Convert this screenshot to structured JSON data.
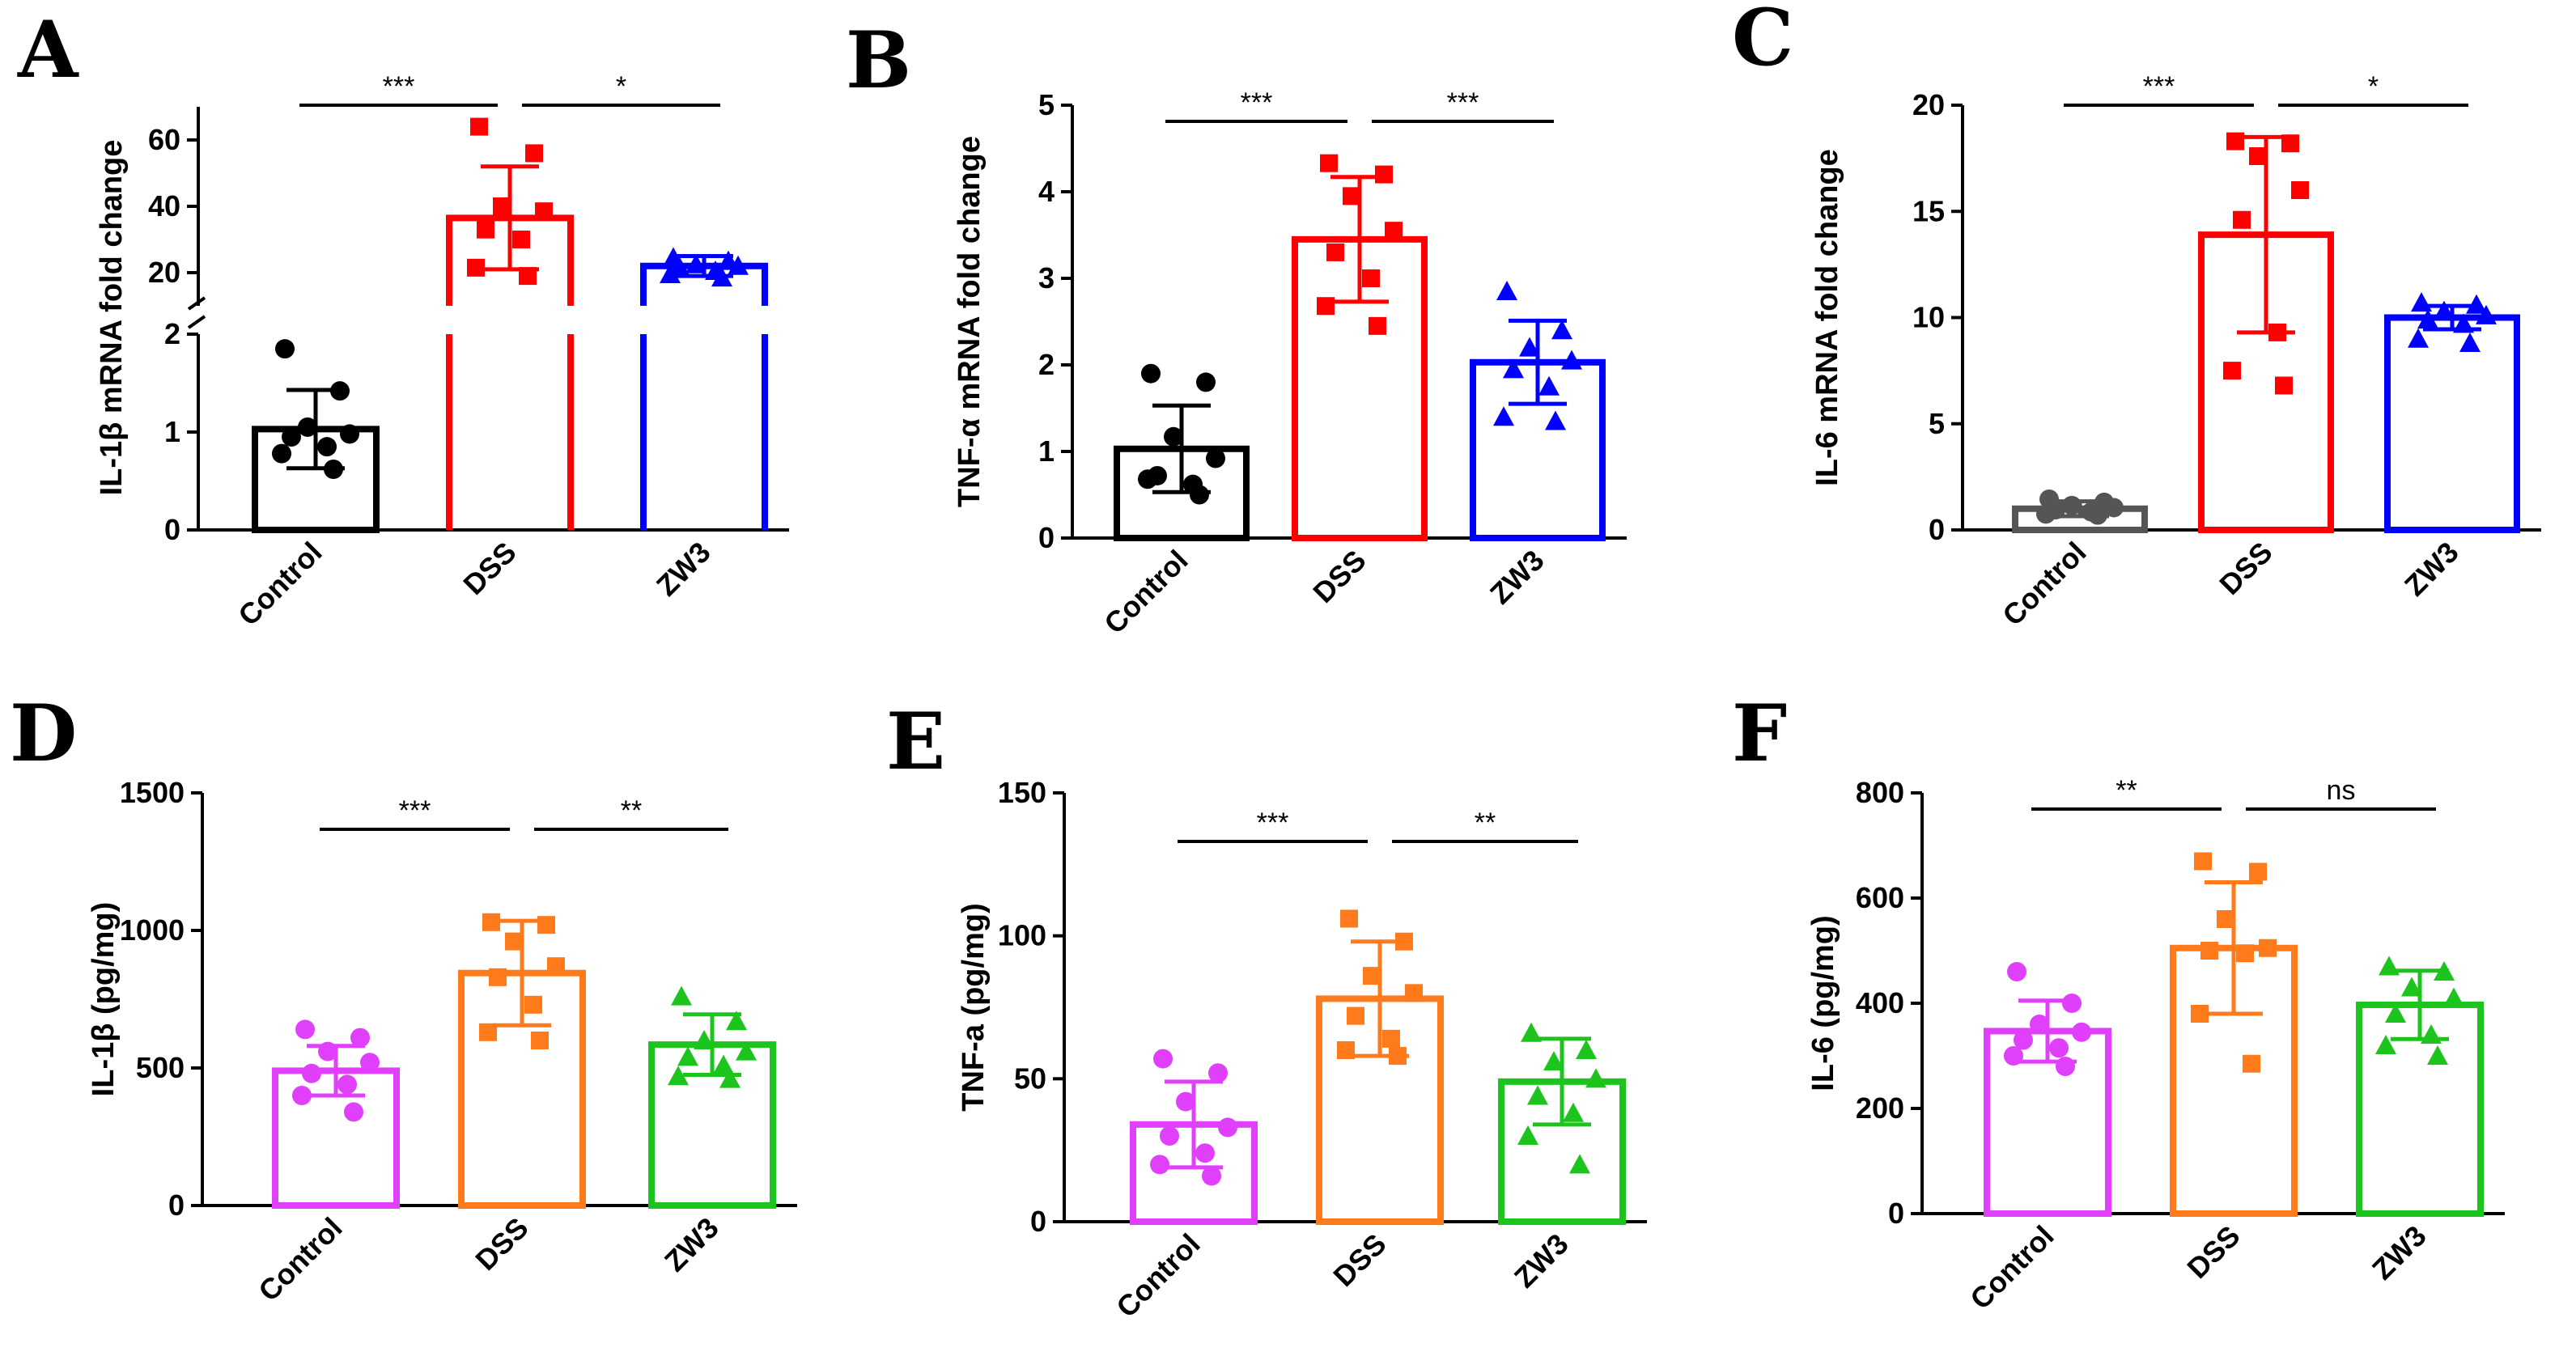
{
  "chart_data": [
    {
      "type": "bar",
      "panel": "A",
      "ylabel": "IL-1β mRNA fold change",
      "categories": [
        "Control",
        "DSS",
        "ZW3"
      ],
      "colors": [
        "#000000",
        "#ff0000",
        "#0000ff"
      ],
      "marker": "circle-square-triangle",
      "markers": [
        "circle",
        "square",
        "triangle"
      ],
      "broken_axis": {
        "lower": {
          "range": [
            0,
            2
          ],
          "ticks": [
            0,
            1,
            2
          ]
        },
        "upper": {
          "range": [
            10,
            70
          ],
          "ticks": [
            20,
            40,
            60
          ]
        }
      },
      "values": [
        1.03,
        36.5,
        22.0
      ],
      "errors": [
        0.4,
        15.5,
        3.0
      ],
      "points": [
        [
          1.85,
          1.42,
          1.05,
          0.98,
          0.95,
          0.85,
          0.78,
          0.62
        ],
        [
          64.0,
          56.0,
          40.0,
          38.5,
          33.0,
          30.0,
          21.5,
          19.0
        ],
        [
          24.5,
          23.5,
          22.5,
          22.0,
          21.5,
          20.5,
          19.5,
          18.5
        ]
      ],
      "significance": [
        {
          "from": 0,
          "to": 1,
          "label": "***"
        },
        {
          "from": 1,
          "to": 2,
          "label": "*"
        }
      ]
    },
    {
      "type": "bar",
      "panel": "B",
      "ylabel": "TNF-α mRNA fold change",
      "categories": [
        "Control",
        "DSS",
        "ZW3"
      ],
      "colors": [
        "#000000",
        "#ff0000",
        "#0000ff"
      ],
      "markers": [
        "circle",
        "square",
        "triangle"
      ],
      "ylim": [
        0,
        5
      ],
      "ticks": [
        0,
        1,
        2,
        3,
        4,
        5
      ],
      "values": [
        1.03,
        3.45,
        2.03
      ],
      "errors": [
        0.5,
        0.72,
        0.48
      ],
      "points": [
        [
          1.9,
          1.8,
          1.17,
          0.92,
          0.72,
          0.62,
          0.68,
          0.5
        ],
        [
          4.33,
          4.2,
          3.95,
          3.55,
          3.3,
          3.0,
          2.68,
          2.45
        ],
        [
          2.85,
          2.4,
          2.2,
          2.05,
          1.95,
          1.75,
          1.4,
          1.35
        ]
      ],
      "significance": [
        {
          "from": 0,
          "to": 1,
          "label": "***"
        },
        {
          "from": 1,
          "to": 2,
          "label": "***"
        }
      ]
    },
    {
      "type": "bar",
      "panel": "C",
      "ylabel": "IL-6 mRNA fold change",
      "categories": [
        "Control",
        "DSS",
        "ZW3"
      ],
      "colors": [
        "#555555",
        "#ff0000",
        "#0000ff"
      ],
      "markers": [
        "circle",
        "square",
        "triangle"
      ],
      "ylim": [
        0,
        20
      ],
      "ticks": [
        0,
        5,
        10,
        15,
        20
      ],
      "values": [
        1.0,
        13.9,
        10.0
      ],
      "errors": [
        0.35,
        4.6,
        0.55
      ],
      "points": [
        [
          1.45,
          1.3,
          1.15,
          1.05,
          0.95,
          0.85,
          0.75,
          0.7
        ],
        [
          18.3,
          18.2,
          17.6,
          16.0,
          14.6,
          9.3,
          7.5,
          6.8
        ],
        [
          10.7,
          10.6,
          10.3,
          10.1,
          9.9,
          9.7,
          9.0,
          8.8
        ]
      ],
      "significance": [
        {
          "from": 0,
          "to": 1,
          "label": "***"
        },
        {
          "from": 1,
          "to": 2,
          "label": "*"
        }
      ]
    },
    {
      "type": "bar",
      "panel": "D",
      "ylabel": "IL-1β (pg/mg)",
      "categories": [
        "Control",
        "DSS",
        "ZW3"
      ],
      "colors": [
        "#e040fb",
        "#ff7a1a",
        "#1ec41e"
      ],
      "markers": [
        "circle",
        "square",
        "triangle"
      ],
      "ylim": [
        0,
        1500
      ],
      "ticks": [
        0,
        500,
        1000,
        1500
      ],
      "values": [
        490,
        845,
        585
      ],
      "errors": [
        90,
        190,
        110
      ],
      "points": [
        [
          640,
          610,
          560,
          520,
          480,
          440,
          400,
          340
        ],
        [
          1030,
          1020,
          960,
          870,
          830,
          730,
          630,
          600
        ],
        [
          760,
          670,
          600,
          560,
          540,
          510,
          470,
          460
        ]
      ],
      "significance": [
        {
          "from": 0,
          "to": 1,
          "label": "***"
        },
        {
          "from": 1,
          "to": 2,
          "label": "**"
        }
      ]
    },
    {
      "type": "bar",
      "panel": "E",
      "ylabel": "TNF-a (pg/mg)",
      "categories": [
        "Control",
        "DSS",
        "ZW3"
      ],
      "colors": [
        "#e040fb",
        "#ff7a1a",
        "#1ec41e"
      ],
      "markers": [
        "circle",
        "square",
        "triangle"
      ],
      "ylim": [
        0,
        150
      ],
      "ticks": [
        0,
        50,
        100,
        150
      ],
      "values": [
        34,
        78,
        49
      ],
      "errors": [
        15,
        20,
        15
      ],
      "points": [
        [
          57,
          52,
          42,
          33,
          30,
          24,
          20,
          16
        ],
        [
          106,
          98,
          86,
          80,
          72,
          64,
          60,
          58
        ],
        [
          66,
          60,
          56,
          50,
          44,
          38,
          30,
          20
        ]
      ],
      "significance": [
        {
          "from": 0,
          "to": 1,
          "label": "***"
        },
        {
          "from": 1,
          "to": 2,
          "label": "**"
        }
      ]
    },
    {
      "type": "bar",
      "panel": "F",
      "ylabel": "IL-6 (pg/mg)",
      "categories": [
        "Control",
        "DSS",
        "ZW3"
      ],
      "colors": [
        "#e040fb",
        "#ff7a1a",
        "#1ec41e"
      ],
      "markers": [
        "circle",
        "square",
        "triangle"
      ],
      "ylim": [
        0,
        800
      ],
      "ticks": [
        0,
        200,
        400,
        600,
        800
      ],
      "values": [
        347,
        505,
        397
      ],
      "errors": [
        58,
        125,
        65
      ],
      "points": [
        [
          460,
          400,
          360,
          345,
          330,
          315,
          300,
          280
        ],
        [
          670,
          650,
          560,
          505,
          500,
          495,
          380,
          285
        ],
        [
          470,
          460,
          430,
          410,
          380,
          340,
          320,
          300
        ]
      ],
      "significance": [
        {
          "from": 0,
          "to": 1,
          "label": "**"
        },
        {
          "from": 1,
          "to": 2,
          "label": "ns"
        }
      ]
    }
  ]
}
